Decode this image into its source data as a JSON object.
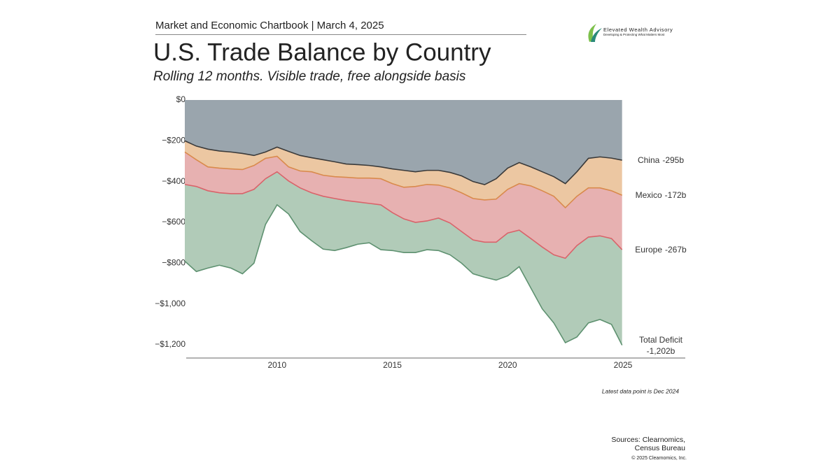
{
  "header": {
    "text": "Market and Economic Chartbook | March 4, 2025"
  },
  "logo": {
    "name": "Elevated Wealth Advisory",
    "tagline": "Developing & Protecting What Matters Most"
  },
  "chart_data": {
    "type": "stacked-area",
    "title": "U.S. Trade Balance by Country",
    "subtitle": "Rolling 12 months. Visible trade, free alongside basis",
    "note": "Latest data point is Dec 2024",
    "background": "#9aa5ad",
    "grid": false,
    "x": [
      2006,
      2006.5,
      2007,
      2007.5,
      2008,
      2008.5,
      2009,
      2009.5,
      2010,
      2010.5,
      2011,
      2011.5,
      2012,
      2012.5,
      2013,
      2013.5,
      2014,
      2014.5,
      2015,
      2015.5,
      2016,
      2016.5,
      2017,
      2017.5,
      2018,
      2018.5,
      2019,
      2019.5,
      2020,
      2020.5,
      2021,
      2021.5,
      2022,
      2022.5,
      2023,
      2023.5,
      2024,
      2024.5,
      2024.96
    ],
    "xlim": [
      2006,
      2025
    ],
    "xticks": [
      2010,
      2015,
      2020,
      2025
    ],
    "ylim": [
      -1265,
      0
    ],
    "yticks": [
      {
        "value": 0,
        "label": "$0"
      },
      {
        "value": -200,
        "label": "−$200"
      },
      {
        "value": -400,
        "label": "−$400"
      },
      {
        "value": -600,
        "label": "−$600"
      },
      {
        "value": -800,
        "label": "−$800"
      },
      {
        "value": -1000,
        "label": "−$1,000"
      },
      {
        "value": -1200,
        "label": "−$1,200"
      }
    ],
    "series": [
      {
        "name": "China",
        "color": "#3a3a3a",
        "fill": "#9aa5ad",
        "values": [
          -200,
          -226,
          -241,
          -250,
          -255,
          -262,
          -272,
          -255,
          -231,
          -252,
          -272,
          -283,
          -293,
          -303,
          -314,
          -317,
          -321,
          -328,
          -338,
          -345,
          -352,
          -345,
          -345,
          -355,
          -372,
          -400,
          -415,
          -386,
          -334,
          -307,
          -328,
          -352,
          -376,
          -410,
          -352,
          -286,
          -279,
          -285,
          -295
        ],
        "value_labels": [
          null,
          null,
          null,
          null,
          null,
          null,
          null,
          null,
          null,
          null,
          null,
          null,
          null,
          null,
          null,
          null,
          null,
          null,
          null,
          null,
          null,
          null,
          null,
          null,
          null,
          null,
          null,
          null,
          null,
          null,
          null,
          null,
          null,
          null,
          null,
          null,
          null,
          null,
          "-295b"
        ]
      },
      {
        "name": "Mexico",
        "color": "#d98a4c",
        "fill": "#ecc7a2",
        "values": [
          -55,
          -67,
          -87,
          -84,
          -83,
          -79,
          -49,
          -31,
          -45,
          -76,
          -76,
          -69,
          -76,
          -73,
          -65,
          -66,
          -62,
          -58,
          -72,
          -83,
          -72,
          -69,
          -72,
          -76,
          -83,
          -83,
          -75,
          -100,
          -104,
          -103,
          -93,
          -93,
          -96,
          -118,
          -120,
          -145,
          -152,
          -160,
          -172
        ],
        "value_labels": [
          null,
          null,
          null,
          null,
          null,
          null,
          null,
          null,
          null,
          null,
          null,
          null,
          null,
          null,
          null,
          null,
          null,
          null,
          null,
          null,
          null,
          null,
          null,
          null,
          null,
          null,
          null,
          null,
          null,
          null,
          null,
          null,
          null,
          null,
          null,
          null,
          null,
          null,
          "-172b"
        ]
      },
      {
        "name": "Europe",
        "color": "#d9636a",
        "fill": "#e7b1b1",
        "values": [
          -159,
          -131,
          -117,
          -121,
          -121,
          -118,
          -117,
          -100,
          -76,
          -69,
          -83,
          -103,
          -103,
          -107,
          -114,
          -117,
          -124,
          -128,
          -142,
          -155,
          -176,
          -179,
          -162,
          -172,
          -190,
          -203,
          -207,
          -211,
          -214,
          -228,
          -258,
          -276,
          -287,
          -248,
          -242,
          -241,
          -235,
          -234,
          -267
        ],
        "value_labels": [
          null,
          null,
          null,
          null,
          null,
          null,
          null,
          null,
          null,
          null,
          null,
          null,
          null,
          null,
          null,
          null,
          null,
          null,
          null,
          null,
          null,
          null,
          null,
          null,
          null,
          null,
          null,
          null,
          null,
          null,
          null,
          null,
          null,
          null,
          null,
          null,
          null,
          null,
          "-267b"
        ]
      },
      {
        "color": "#5e9170",
        "fill": "#b1cbb8",
        "values": [
          -376,
          -417,
          -379,
          -355,
          -365,
          -393,
          -362,
          -224,
          -162,
          -162,
          -214,
          -235,
          -259,
          -255,
          -231,
          -207,
          -193,
          -220,
          -186,
          -165,
          -148,
          -141,
          -159,
          -156,
          -155,
          -166,
          -172,
          -186,
          -210,
          -179,
          -242,
          -303,
          -334,
          -414,
          -448,
          -421,
          -410,
          -421,
          -468
        ]
      }
    ],
    "total": {
      "name": "Total Deficit",
      "value": -1202,
      "value_label": "-1,202b"
    }
  },
  "footer": {
    "sources": [
      "Sources: Clearnomics,",
      "Census Bureau"
    ],
    "copyright": "© 2025 Clearnomics, Inc."
  }
}
